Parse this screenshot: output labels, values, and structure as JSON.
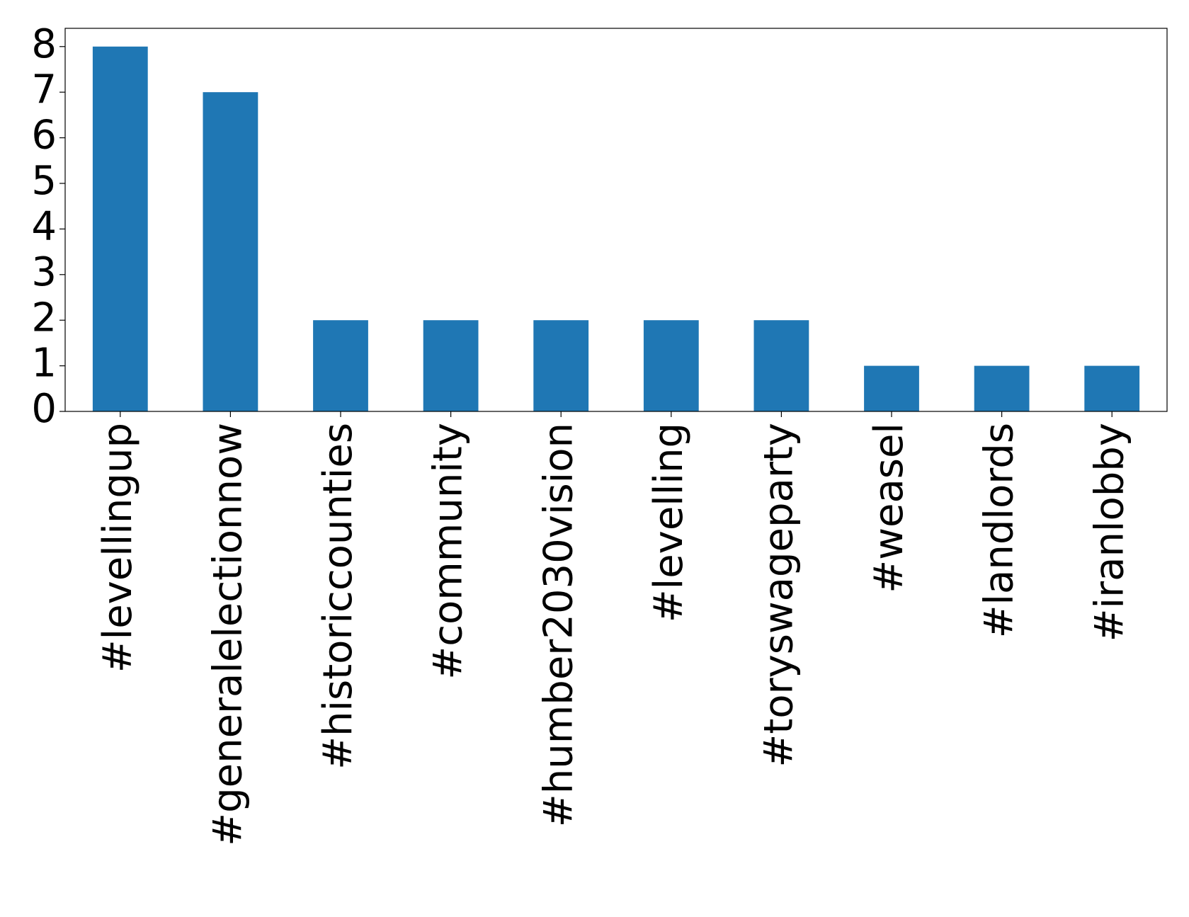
{
  "chart_data": {
    "type": "bar",
    "categories": [
      "#levellingup",
      "#generalelectionnow",
      "#historiccounties",
      "#community",
      "#humber2030vision",
      "#levelling",
      "#toryswageparty",
      "#weasel",
      "#landlords",
      "#iranlobby"
    ],
    "values": [
      8,
      7,
      2,
      2,
      2,
      2,
      2,
      1,
      1,
      1
    ],
    "color": "#1f77b4",
    "ylim": [
      0,
      8.4
    ],
    "yticks": [
      0,
      1,
      2,
      3,
      4,
      5,
      6,
      7,
      8
    ],
    "grid": false
  }
}
